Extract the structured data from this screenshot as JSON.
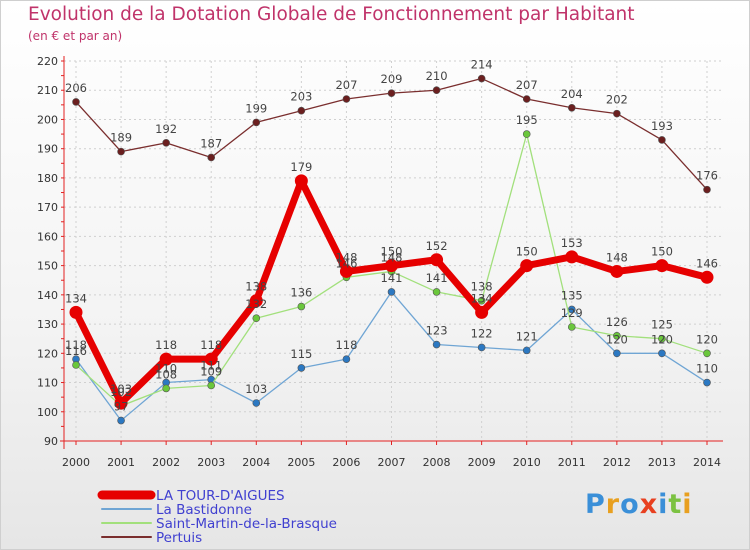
{
  "title": "Evolution de la Dotation Globale de Fonctionnement par Habitant",
  "subtitle": "(en € et par an)",
  "logo_text": "Proxiti",
  "colors": {
    "title": "#c0336a",
    "axis": "#e32020",
    "grid": "#d0d0d0",
    "tick_text": "#333333",
    "value_label": "#444444",
    "legend_text": "#4040d0"
  },
  "chart_data": {
    "type": "line",
    "x": [
      "2000",
      "2001",
      "2002",
      "2003",
      "2004",
      "2005",
      "2006",
      "2007",
      "2008",
      "2009",
      "2010",
      "2011",
      "2012",
      "2013",
      "2014"
    ],
    "ylim": [
      90,
      220
    ],
    "yticks": [
      90,
      100,
      110,
      120,
      130,
      140,
      150,
      160,
      170,
      180,
      190,
      200,
      210,
      220
    ],
    "grid": true,
    "legend_position": "bottom-left",
    "series": [
      {
        "name": "LA TOUR-D'AIGUES",
        "color": "#e60000",
        "marker_color": "#e60000",
        "values": [
          134,
          103,
          118,
          118,
          138,
          179,
          148,
          150,
          152,
          134,
          150,
          153,
          148,
          150,
          146
        ]
      },
      {
        "name": "La Bastidonne",
        "color": "#6fa5d4",
        "marker_color": "#2b78c2",
        "values": [
          118,
          97,
          110,
          111,
          103,
          115,
          118,
          141,
          123,
          122,
          121,
          135,
          120,
          120,
          110
        ]
      },
      {
        "name": "Saint-Martin-de-la-Brasque",
        "color": "#a2e07c",
        "marker_color": "#6ac73b",
        "values": [
          116,
          102,
          108,
          109,
          132,
          136,
          146,
          148,
          141,
          138,
          195,
          129,
          126,
          125,
          120
        ]
      },
      {
        "name": "Pertuis",
        "color": "#7a2e2e",
        "marker_color": "#6b1f1f",
        "values": [
          206,
          189,
          192,
          187,
          199,
          203,
          207,
          209,
          210,
          214,
          207,
          204,
          202,
          193,
          176
        ]
      }
    ]
  }
}
